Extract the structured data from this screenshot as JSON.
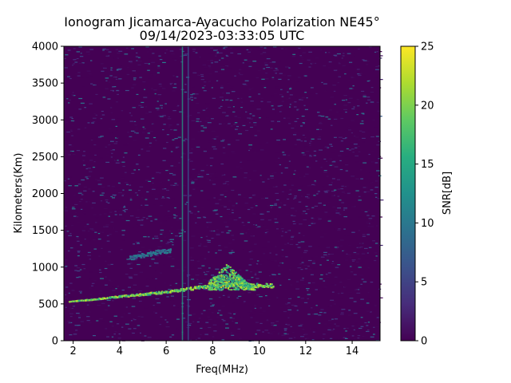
{
  "chart_data": {
    "type": "heatmap",
    "title": "Ionogram Jicamarca-Ayacucho Polarization NE45°",
    "subtitle": "09/14/2023-03:33:05 UTC",
    "xlabel": "Freq(MHz)",
    "ylabel": "Kilometers(Km)",
    "xlim": [
      1.6,
      15.2
    ],
    "ylim": [
      0,
      4000
    ],
    "xticks": [
      "2",
      "4",
      "6",
      "8",
      "10",
      "12",
      "14"
    ],
    "xtick_values": [
      2,
      4,
      6,
      8,
      10,
      12,
      14
    ],
    "yticks": [
      "0",
      "500",
      "1000",
      "1500",
      "2000",
      "2500",
      "3000",
      "3500",
      "4000"
    ],
    "ytick_values": [
      0,
      500,
      1000,
      1500,
      2000,
      2500,
      3000,
      3500,
      4000
    ],
    "colorbar": {
      "label": "SNR[dB]",
      "range": [
        0,
        25
      ],
      "ticks": [
        "0",
        "5",
        "10",
        "15",
        "20",
        "25"
      ],
      "tick_values": [
        0,
        5,
        10,
        15,
        20,
        25
      ],
      "colormap": "viridis"
    },
    "features": [
      {
        "kind": "trace",
        "points": [
          [
            1.8,
            540
          ],
          [
            3,
            575
          ],
          [
            4,
            610
          ],
          [
            5,
            640
          ],
          [
            6,
            670
          ],
          [
            7,
            715
          ],
          [
            8,
            760
          ],
          [
            9,
            770
          ],
          [
            10,
            760
          ],
          [
            10.6,
            750
          ]
        ],
        "snr_db": 24
      },
      {
        "kind": "spread",
        "x_range": [
          7.8,
          9.8
        ],
        "y_range": [
          700,
          1050
        ],
        "peak": [
          8.6,
          1050
        ],
        "snr_db": 23
      },
      {
        "kind": "echo",
        "points": [
          [
            4.4,
            1130
          ],
          [
            5,
            1170
          ],
          [
            5.6,
            1210
          ],
          [
            6.2,
            1230
          ]
        ],
        "snr_db": 12
      },
      {
        "kind": "vertical_interference",
        "x": 6.7,
        "snr_db": 14
      },
      {
        "kind": "vertical_interference",
        "x": 6.95,
        "snr_db": 7
      }
    ],
    "grid": false
  },
  "colors": {
    "background": "#440154",
    "low": "#440154",
    "high": "#fde725"
  }
}
